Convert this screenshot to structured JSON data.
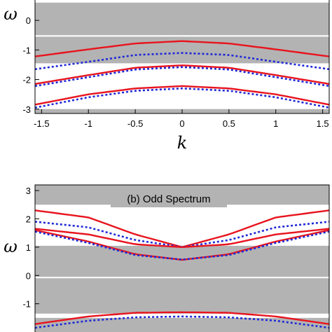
{
  "chart_data": [
    {
      "type": "line",
      "panel": "top",
      "title": "",
      "xlabel": "k",
      "ylabel": "ω",
      "xlim": [
        -1.57,
        1.57
      ],
      "ylim": [
        -3.1,
        0.5
      ],
      "xticks": [
        "-1.5",
        "-1",
        "-0.5",
        "0",
        "0.5",
        "1",
        "1.5"
      ],
      "xtick_values": [
        -1.5,
        -1,
        -0.5,
        0,
        0.5,
        1,
        1.5
      ],
      "yticks": [
        "-3",
        "-2",
        "-1",
        "0"
      ],
      "ytick_values": [
        -3,
        -2,
        -1,
        0
      ],
      "grid": false,
      "continuum": "gray shaded band regions",
      "colors": {
        "solid": "#e8141e",
        "dotted": "#1f2ad6",
        "continuum": "#b3b3b3"
      },
      "series": [
        {
          "style": "solid",
          "x": [
            -1.57,
            -1.0,
            -0.5,
            0,
            0.5,
            1.0,
            1.57
          ],
          "y": [
            -1.22,
            -0.98,
            -0.78,
            -0.7,
            -0.78,
            -0.98,
            -1.22
          ]
        },
        {
          "style": "dotted",
          "x": [
            -1.57,
            -1.0,
            -0.5,
            0,
            0.5,
            1.0,
            1.57
          ],
          "y": [
            -1.65,
            -1.4,
            -1.17,
            -1.1,
            -1.17,
            -1.4,
            -1.65
          ]
        },
        {
          "style": "solid",
          "x": [
            -1.57,
            -1.0,
            -0.5,
            0,
            0.5,
            1.0,
            1.57
          ],
          "y": [
            -2.15,
            -1.85,
            -1.6,
            -1.52,
            -1.6,
            -1.85,
            -2.15
          ]
        },
        {
          "style": "dotted",
          "x": [
            -1.57,
            -1.0,
            -0.5,
            0,
            0.5,
            1.0,
            1.57
          ],
          "y": [
            -2.22,
            -1.92,
            -1.66,
            -1.58,
            -1.66,
            -1.92,
            -2.22
          ]
        },
        {
          "style": "solid",
          "x": [
            -1.57,
            -1.0,
            -0.5,
            0,
            0.5,
            1.0,
            1.57
          ],
          "y": [
            -2.85,
            -2.5,
            -2.3,
            -2.22,
            -2.3,
            -2.5,
            -2.85
          ]
        },
        {
          "style": "dotted",
          "x": [
            -1.57,
            -1.0,
            -0.5,
            0,
            0.5,
            1.0,
            1.57
          ],
          "y": [
            -2.95,
            -2.6,
            -2.38,
            -2.3,
            -2.38,
            -2.6,
            -2.95
          ]
        }
      ]
    },
    {
      "type": "line",
      "panel": "bottom",
      "title": "(b) Odd Spectrum",
      "xlabel": "",
      "ylabel": "ω",
      "xlim": [
        -1.57,
        1.57
      ],
      "ylim": [
        -1.85,
        3.1
      ],
      "yticks": [
        "-1",
        "0",
        "1",
        "2",
        "3"
      ],
      "ytick_values": [
        -1,
        0,
        1,
        2,
        3
      ],
      "grid": false,
      "continuum": "gray shaded band regions",
      "colors": {
        "solid": "#e8141e",
        "dotted": "#1f2ad6",
        "continuum": "#b3b3b3"
      },
      "series": [
        {
          "style": "solid",
          "x": [
            -1.57,
            -1.0,
            -0.5,
            0,
            0.5,
            1.0,
            1.57
          ],
          "y": [
            2.3,
            2.05,
            1.45,
            1.0,
            1.45,
            2.05,
            2.3
          ]
        },
        {
          "style": "dotted",
          "x": [
            -1.57,
            -1.0,
            -0.5,
            0,
            0.5,
            1.0,
            1.57
          ],
          "y": [
            1.9,
            1.7,
            1.25,
            1.0,
            1.25,
            1.7,
            1.9
          ]
        },
        {
          "style": "solid",
          "x": [
            -1.57,
            -1.0,
            -0.5,
            0,
            0.5,
            1.0,
            1.57
          ],
          "y": [
            1.65,
            1.45,
            1.1,
            1.0,
            1.1,
            1.45,
            1.65
          ]
        },
        {
          "style": "solid",
          "x": [
            -1.57,
            -1.0,
            -0.5,
            0,
            0.5,
            1.0,
            1.57
          ],
          "y": [
            1.6,
            1.2,
            0.75,
            0.55,
            0.75,
            1.2,
            1.6
          ]
        },
        {
          "style": "dotted",
          "x": [
            -1.57,
            -1.0,
            -0.5,
            0,
            0.5,
            1.0,
            1.57
          ],
          "y": [
            1.55,
            1.15,
            0.72,
            0.56,
            0.72,
            1.15,
            1.55
          ]
        },
        {
          "style": "solid",
          "x": [
            -1.57,
            -1.0,
            -0.5,
            0,
            0.5,
            1.0,
            1.57
          ],
          "y": [
            -1.72,
            -1.45,
            -1.32,
            -1.3,
            -1.32,
            -1.45,
            -1.72
          ]
        },
        {
          "style": "dotted",
          "x": [
            -1.57,
            -1.0,
            -0.5,
            0,
            0.5,
            1.0,
            1.57
          ],
          "y": [
            -1.85,
            -1.6,
            -1.48,
            -1.45,
            -1.48,
            -1.6,
            -1.85
          ]
        }
      ]
    }
  ]
}
